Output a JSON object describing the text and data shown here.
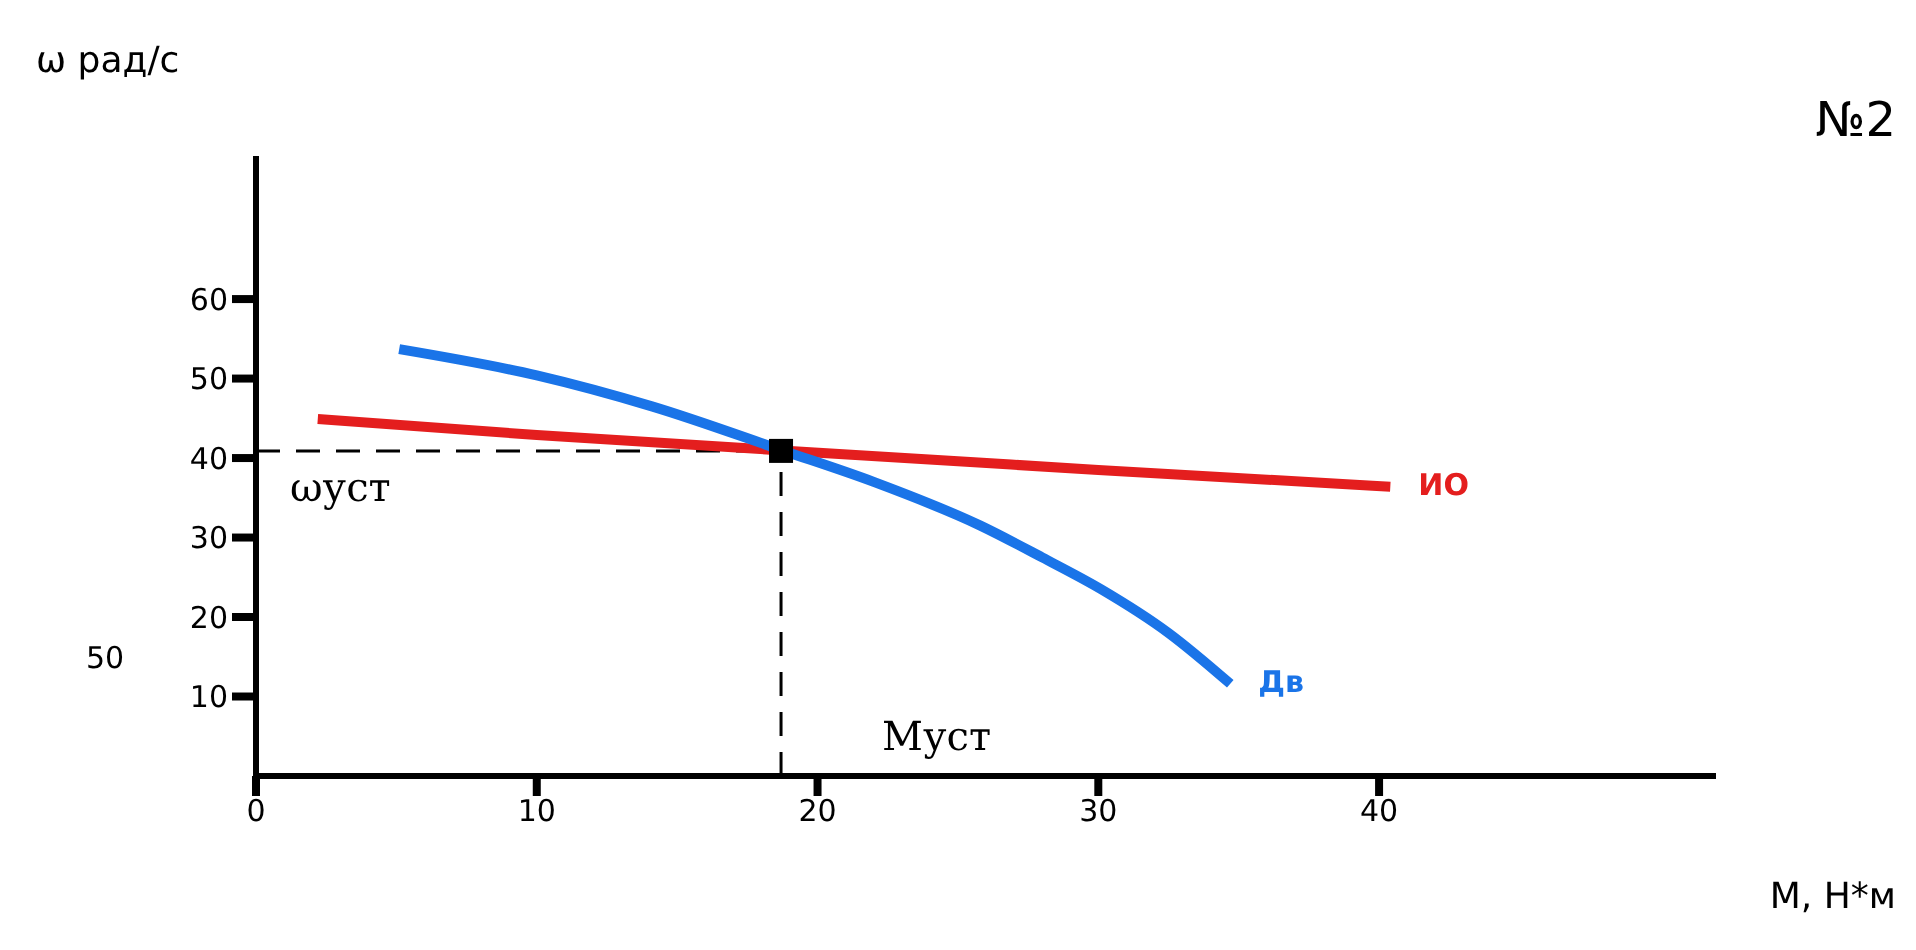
{
  "chart_data": {
    "type": "line",
    "xlabel": "M, Н*м",
    "ylabel": "ω рад/с",
    "annotations": [
      "№2",
      "50"
    ],
    "xlim": [
      0,
      52
    ],
    "ylim": [
      0,
      78
    ],
    "xticks": [
      0,
      10,
      20,
      30,
      40
    ],
    "yticks": [
      10,
      20,
      30,
      40,
      50,
      60
    ],
    "grid": false,
    "marker": "none",
    "line_style": "solid",
    "series": [
      {
        "name": "ИО",
        "color": "#e41e1e",
        "x": [
          2.2,
          10,
          25,
          30,
          40.4
        ],
        "values": [
          44.9,
          42.9,
          39.6,
          38.5,
          36.4
        ]
      },
      {
        "name": "Дв",
        "color": "#1a74e8",
        "x": [
          5.1,
          10,
          14.1,
          18.8,
          22,
          25.8,
          28,
          30.1,
          32.5,
          34.7
        ],
        "values": [
          53.7,
          50.4,
          46.5,
          40.9,
          37,
          31.5,
          27.5,
          23.5,
          18,
          11.6
        ]
      },
      {
        "type": "scatter",
        "color": "#000000",
        "marker": "square",
        "x": [
          18.7
        ],
        "values": [
          40.9
        ]
      }
    ],
    "ref_lines": [
      {
        "axis": "y",
        "value": 40.9,
        "label": "ωуст",
        "color": "#000000",
        "line_style": "dashed"
      },
      {
        "axis": "x",
        "value": 18.7,
        "label": "Mуст",
        "color": "#000000",
        "line_style": "dashed"
      }
    ]
  }
}
